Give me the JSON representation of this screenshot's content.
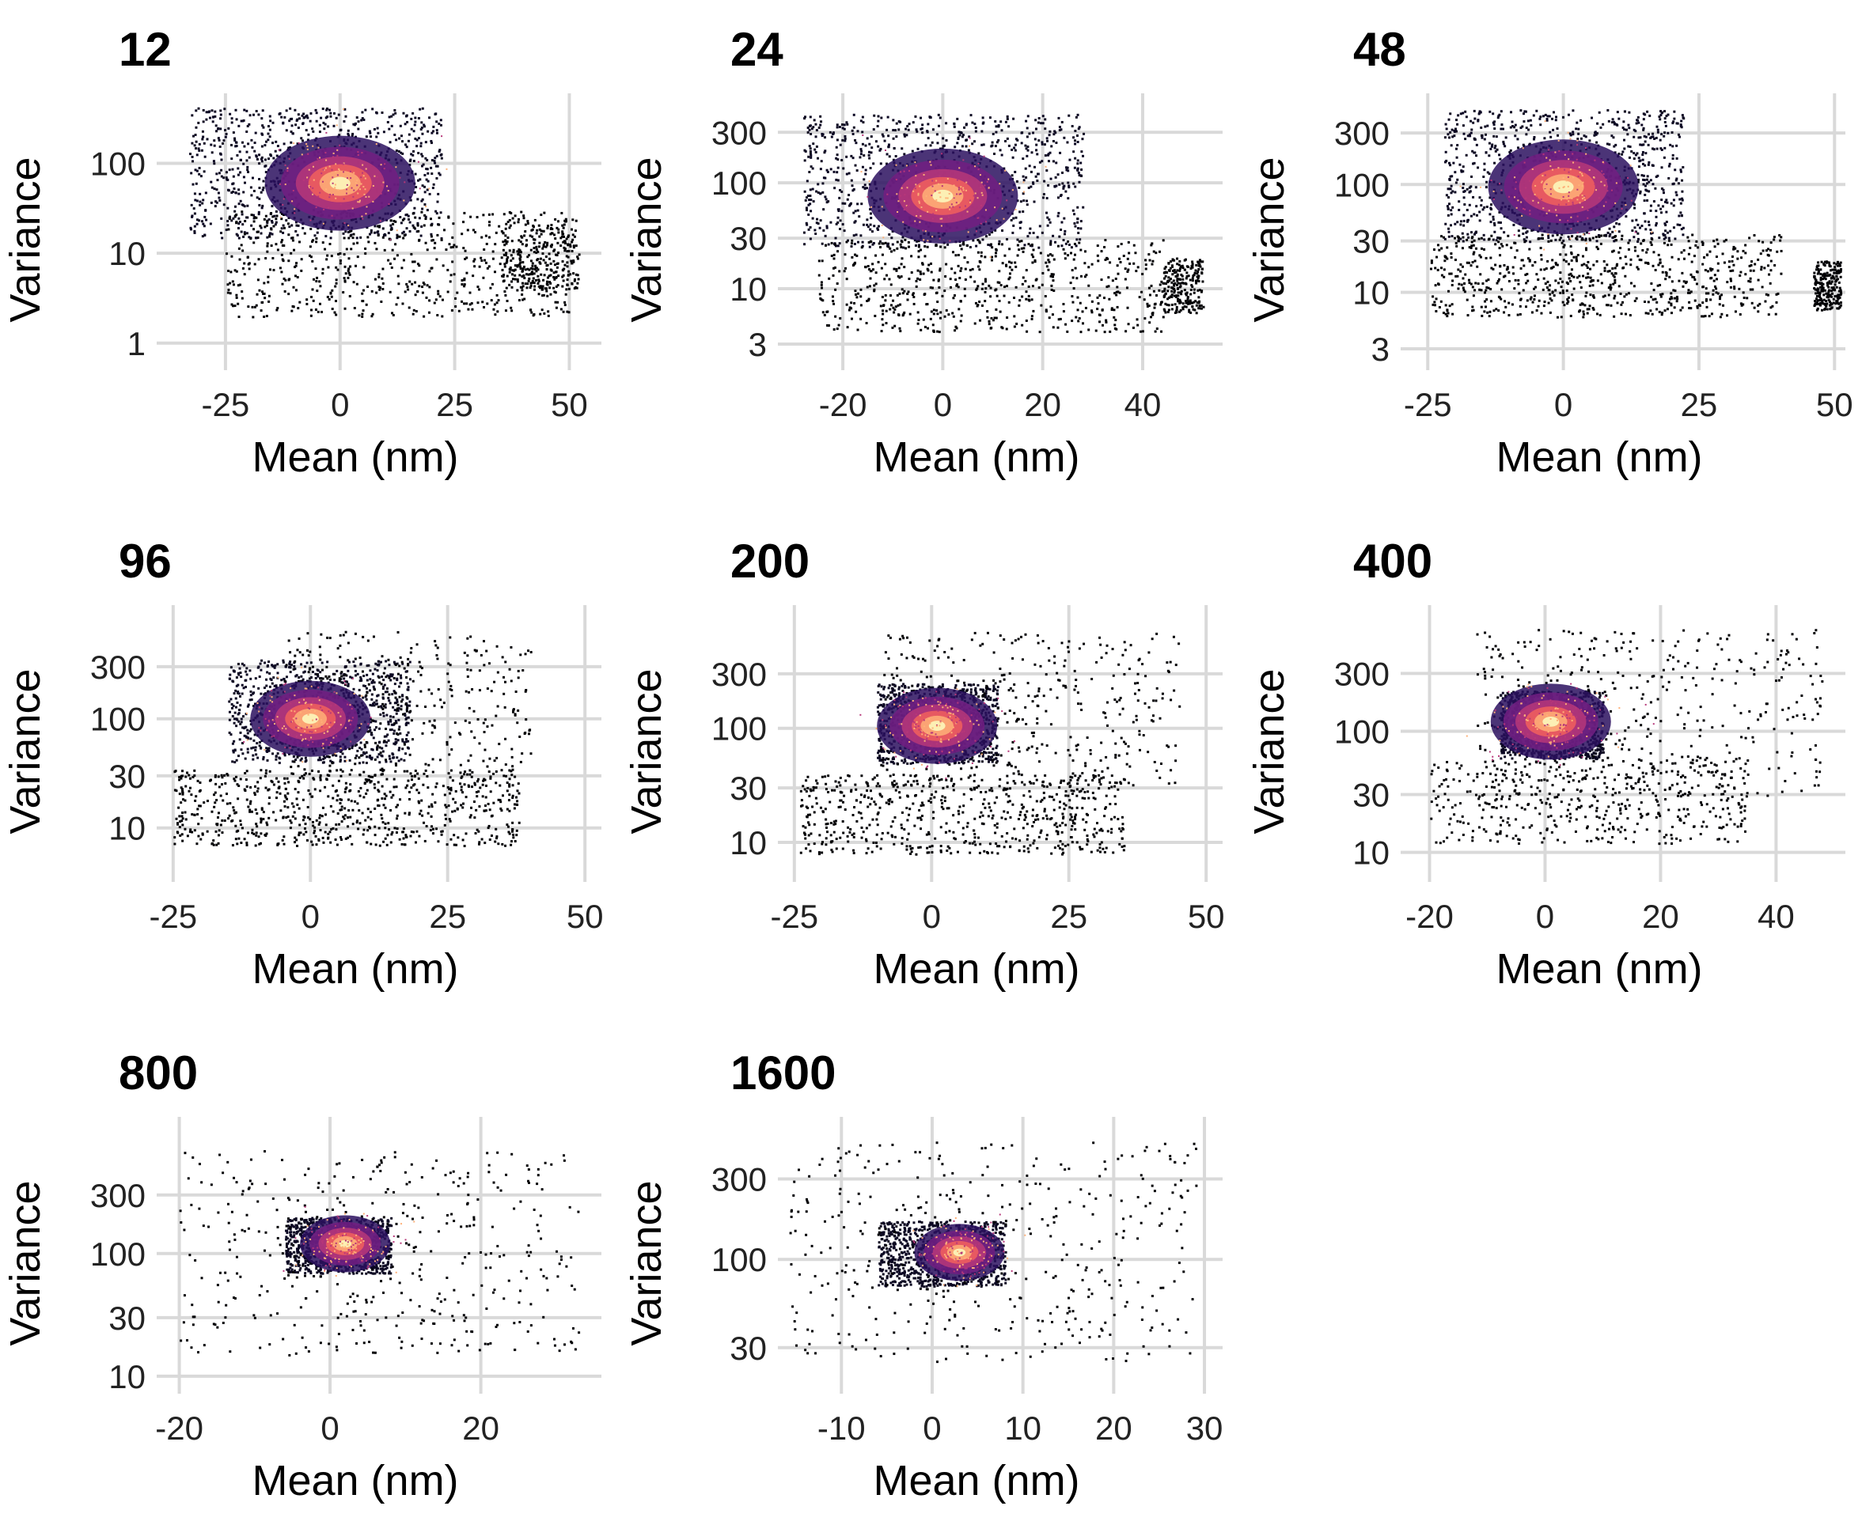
{
  "chart_data": [
    {
      "type": "heatmap",
      "title": "12",
      "xlabel": "Mean (nm)",
      "ylabel": "Variance",
      "yscale": "log",
      "xlim": [
        -40,
        57
      ],
      "ylim": [
        0.5,
        600
      ],
      "xticks": [
        -25,
        0,
        25,
        50
      ],
      "xtick_labels": [
        "-25",
        "0",
        "25",
        "50"
      ],
      "yticks": [
        1,
        10,
        100
      ],
      "ytick_labels": [
        "1",
        "10",
        "100"
      ],
      "hotspot": {
        "x": 0,
        "y": 60
      },
      "density_regions": [
        {
          "x": [
            -33,
            22
          ],
          "y": [
            15,
            420
          ],
          "weight": 1.0
        },
        {
          "x": [
            -25,
            50
          ],
          "y": [
            2,
            30
          ],
          "weight": 0.7
        },
        {
          "x": [
            35,
            52
          ],
          "y": [
            4,
            25
          ],
          "weight": 0.3
        }
      ],
      "color_scale": [
        "#000004",
        "#2c115f",
        "#721f81",
        "#b73779",
        "#f1605d",
        "#feb078",
        "#fcfdbf"
      ],
      "grid": true,
      "legend": "none"
    },
    {
      "type": "heatmap",
      "title": "24",
      "xlabel": "Mean (nm)",
      "ylabel": "Variance",
      "yscale": "log",
      "xlim": [
        -33,
        56
      ],
      "ylim": [
        1.7,
        700
      ],
      "xticks": [
        -20,
        0,
        20,
        40
      ],
      "xtick_labels": [
        "-20",
        "0",
        "20",
        "40"
      ],
      "yticks": [
        3,
        10,
        30,
        100,
        300
      ],
      "ytick_labels": [
        "3",
        "10",
        "30",
        "100",
        "300"
      ],
      "hotspot": {
        "x": 0,
        "y": 75
      },
      "density_regions": [
        {
          "x": [
            -28,
            28
          ],
          "y": [
            25,
            450
          ],
          "weight": 1.0
        },
        {
          "x": [
            -25,
            44
          ],
          "y": [
            4,
            30
          ],
          "weight": 0.7
        },
        {
          "x": [
            44,
            52
          ],
          "y": [
            6,
            20
          ],
          "weight": 0.25
        }
      ],
      "color_scale": [
        "#000004",
        "#2c115f",
        "#721f81",
        "#b73779",
        "#f1605d",
        "#feb078",
        "#fcfdbf"
      ],
      "grid": true,
      "legend": "none"
    },
    {
      "type": "heatmap",
      "title": "48",
      "xlabel": "Mean (nm)",
      "ylabel": "Variance",
      "yscale": "log",
      "xlim": [
        -30,
        52
      ],
      "ylim": [
        1.9,
        700
      ],
      "xticks": [
        -25,
        0,
        25,
        50
      ],
      "xtick_labels": [
        "-25",
        "0",
        "25",
        "50"
      ],
      "yticks": [
        3,
        10,
        30,
        100,
        300
      ],
      "ytick_labels": [
        "3",
        "10",
        "30",
        "100",
        "300"
      ],
      "hotspot": {
        "x": 0,
        "y": 95
      },
      "density_regions": [
        {
          "x": [
            -22,
            22
          ],
          "y": [
            30,
            500
          ],
          "weight": 1.0
        },
        {
          "x": [
            -25,
            40
          ],
          "y": [
            6,
            35
          ],
          "weight": 0.8
        },
        {
          "x": [
            46,
            51
          ],
          "y": [
            7,
            20
          ],
          "weight": 0.25
        }
      ],
      "color_scale": [
        "#000004",
        "#2c115f",
        "#721f81",
        "#b73779",
        "#f1605d",
        "#feb078",
        "#fcfdbf"
      ],
      "grid": true,
      "legend": "none"
    },
    {
      "type": "heatmap",
      "title": "96",
      "xlabel": "Mean (nm)",
      "ylabel": "Variance",
      "yscale": "log",
      "xlim": [
        -28,
        53
      ],
      "ylim": [
        3.2,
        1100
      ],
      "xticks": [
        -25,
        0,
        25,
        50
      ],
      "xtick_labels": [
        "-25",
        "0",
        "25",
        "50"
      ],
      "yticks": [
        10,
        30,
        100,
        300
      ],
      "ytick_labels": [
        "10",
        "30",
        "100",
        "300"
      ],
      "hotspot": {
        "x": 0,
        "y": 100
      },
      "density_regions": [
        {
          "x": [
            -15,
            18
          ],
          "y": [
            40,
            350
          ],
          "weight": 1.0
        },
        {
          "x": [
            -25,
            38
          ],
          "y": [
            7,
            35
          ],
          "weight": 0.8
        },
        {
          "x": [
            -5,
            40
          ],
          "y": [
            30,
            650
          ],
          "weight": 0.4
        }
      ],
      "color_scale": [
        "#000004",
        "#2c115f",
        "#721f81",
        "#b73779",
        "#f1605d",
        "#feb078",
        "#fcfdbf"
      ],
      "grid": true,
      "legend": "none"
    },
    {
      "type": "heatmap",
      "title": "200",
      "xlabel": "Mean (nm)",
      "ylabel": "Variance",
      "yscale": "log",
      "xlim": [
        -28,
        53
      ],
      "ylim": [
        4.5,
        1200
      ],
      "xticks": [
        -25,
        0,
        25,
        50
      ],
      "xtick_labels": [
        "-25",
        "0",
        "25",
        "50"
      ],
      "yticks": [
        10,
        30,
        100,
        300
      ],
      "ytick_labels": [
        "10",
        "30",
        "100",
        "300"
      ],
      "hotspot": {
        "x": 1,
        "y": 105
      },
      "density_regions": [
        {
          "x": [
            -10,
            12
          ],
          "y": [
            50,
            250
          ],
          "weight": 1.0
        },
        {
          "x": [
            -24,
            35
          ],
          "y": [
            8,
            40
          ],
          "weight": 0.7
        },
        {
          "x": [
            -10,
            45
          ],
          "y": [
            30,
            700
          ],
          "weight": 0.45
        }
      ],
      "color_scale": [
        "#000004",
        "#2c115f",
        "#721f81",
        "#b73779",
        "#f1605d",
        "#feb078",
        "#fcfdbf"
      ],
      "grid": true,
      "legend": "none"
    },
    {
      "type": "heatmap",
      "title": "400",
      "xlabel": "Mean (nm)",
      "ylabel": "Variance",
      "yscale": "log",
      "xlim": [
        -25,
        52
      ],
      "ylim": [
        5.7,
        1100
      ],
      "xticks": [
        -20,
        0,
        20,
        40
      ],
      "xtick_labels": [
        "-20",
        "0",
        "20",
        "40"
      ],
      "yticks": [
        10,
        30,
        100,
        300
      ],
      "ytick_labels": [
        "10",
        "30",
        "100",
        "300"
      ],
      "hotspot": {
        "x": 1,
        "y": 120
      },
      "density_regions": [
        {
          "x": [
            -8,
            10
          ],
          "y": [
            60,
            220
          ],
          "weight": 1.0
        },
        {
          "x": [
            -20,
            35
          ],
          "y": [
            12,
            60
          ],
          "weight": 0.5
        },
        {
          "x": [
            -12,
            48
          ],
          "y": [
            30,
            700
          ],
          "weight": 0.45
        }
      ],
      "color_scale": [
        "#000004",
        "#2c115f",
        "#721f81",
        "#b73779",
        "#f1605d",
        "#feb078",
        "#fcfdbf"
      ],
      "grid": true,
      "legend": "none"
    },
    {
      "type": "heatmap",
      "title": "800",
      "xlabel": "Mean (nm)",
      "ylabel": "Variance",
      "yscale": "log",
      "xlim": [
        -23,
        36
      ],
      "ylim": [
        7.2,
        1300
      ],
      "xticks": [
        -20,
        0,
        20
      ],
      "xtick_labels": [
        "-20",
        "0",
        "20"
      ],
      "yticks": [
        10,
        30,
        100,
        300
      ],
      "ytick_labels": [
        "10",
        "30",
        "100",
        "300"
      ],
      "hotspot": {
        "x": 2,
        "y": 120
      },
      "density_regions": [
        {
          "x": [
            -6,
            8
          ],
          "y": [
            70,
            200
          ],
          "weight": 1.0
        },
        {
          "x": [
            -20,
            33
          ],
          "y": [
            15,
            700
          ],
          "weight": 0.45
        }
      ],
      "color_scale": [
        "#000004",
        "#2c115f",
        "#721f81",
        "#b73779",
        "#f1605d",
        "#feb078",
        "#fcfdbf"
      ],
      "grid": true,
      "legend": "none"
    },
    {
      "type": "heatmap",
      "title": "1600",
      "xlabel": "Mean (nm)",
      "ylabel": "Variance",
      "yscale": "log",
      "xlim": [
        -17,
        32
      ],
      "ylim": [
        16,
        700
      ],
      "xticks": [
        -10,
        0,
        10,
        20,
        30
      ],
      "xtick_labels": [
        "-10",
        "0",
        "10",
        "20",
        "30"
      ],
      "yticks": [
        30,
        100,
        300
      ],
      "ytick_labels": [
        "30",
        "100",
        "300"
      ],
      "hotspot": {
        "x": 3,
        "y": 110
      },
      "density_regions": [
        {
          "x": [
            -6,
            8
          ],
          "y": [
            70,
            170
          ],
          "weight": 1.0
        },
        {
          "x": [
            -16,
            29
          ],
          "y": [
            25,
            500
          ],
          "weight": 0.45
        }
      ],
      "color_scale": [
        "#000004",
        "#2c115f",
        "#721f81",
        "#b73779",
        "#f1605d",
        "#feb078",
        "#fcfdbf"
      ],
      "grid": true,
      "legend": "none"
    }
  ]
}
